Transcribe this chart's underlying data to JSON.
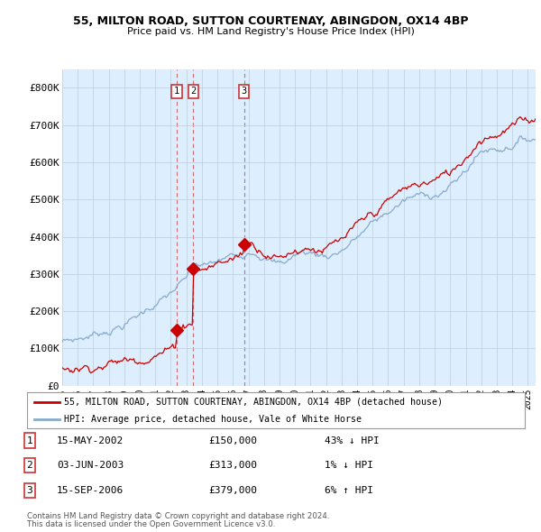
{
  "title1": "55, MILTON ROAD, SUTTON COURTENAY, ABINGDON, OX14 4BP",
  "title2": "Price paid vs. HM Land Registry's House Price Index (HPI)",
  "background_color": "#ffffff",
  "plot_bg_color": "#ddeeff",
  "grid_color": "#bbccdd",
  "line1_color": "#cc0000",
  "line2_color": "#88aacc",
  "sale_marker_color": "#cc0000",
  "vline_color": "#cc3333",
  "legend1": "55, MILTON ROAD, SUTTON COURTENAY, ABINGDON, OX14 4BP (detached house)",
  "legend2": "HPI: Average price, detached house, Vale of White Horse",
  "sales": [
    {
      "num": 1,
      "date": "15-MAY-2002",
      "price": 150000,
      "rel": "43% ↓ HPI",
      "year": 2002.37
    },
    {
      "num": 2,
      "date": "03-JUN-2003",
      "price": 313000,
      "rel": "1% ↓ HPI",
      "year": 2003.45
    },
    {
      "num": 3,
      "date": "15-SEP-2006",
      "price": 379000,
      "rel": "6% ↑ HPI",
      "year": 2006.71
    }
  ],
  "footer1": "Contains HM Land Registry data © Crown copyright and database right 2024.",
  "footer2": "This data is licensed under the Open Government Licence v3.0.",
  "ylim": [
    0,
    850000
  ],
  "xlim_start": 1995.0,
  "xlim_end": 2025.5,
  "yticks": [
    0,
    100000,
    200000,
    300000,
    400000,
    500000,
    600000,
    700000,
    800000
  ],
  "ytick_labels": [
    "£0",
    "£100K",
    "£200K",
    "£300K",
    "£400K",
    "£500K",
    "£600K",
    "£700K",
    "£800K"
  ],
  "xticks": [
    1995,
    1996,
    1997,
    1998,
    1999,
    2000,
    2001,
    2002,
    2003,
    2004,
    2005,
    2006,
    2007,
    2008,
    2009,
    2010,
    2011,
    2012,
    2013,
    2014,
    2015,
    2016,
    2017,
    2018,
    2019,
    2020,
    2021,
    2022,
    2023,
    2024,
    2025
  ]
}
